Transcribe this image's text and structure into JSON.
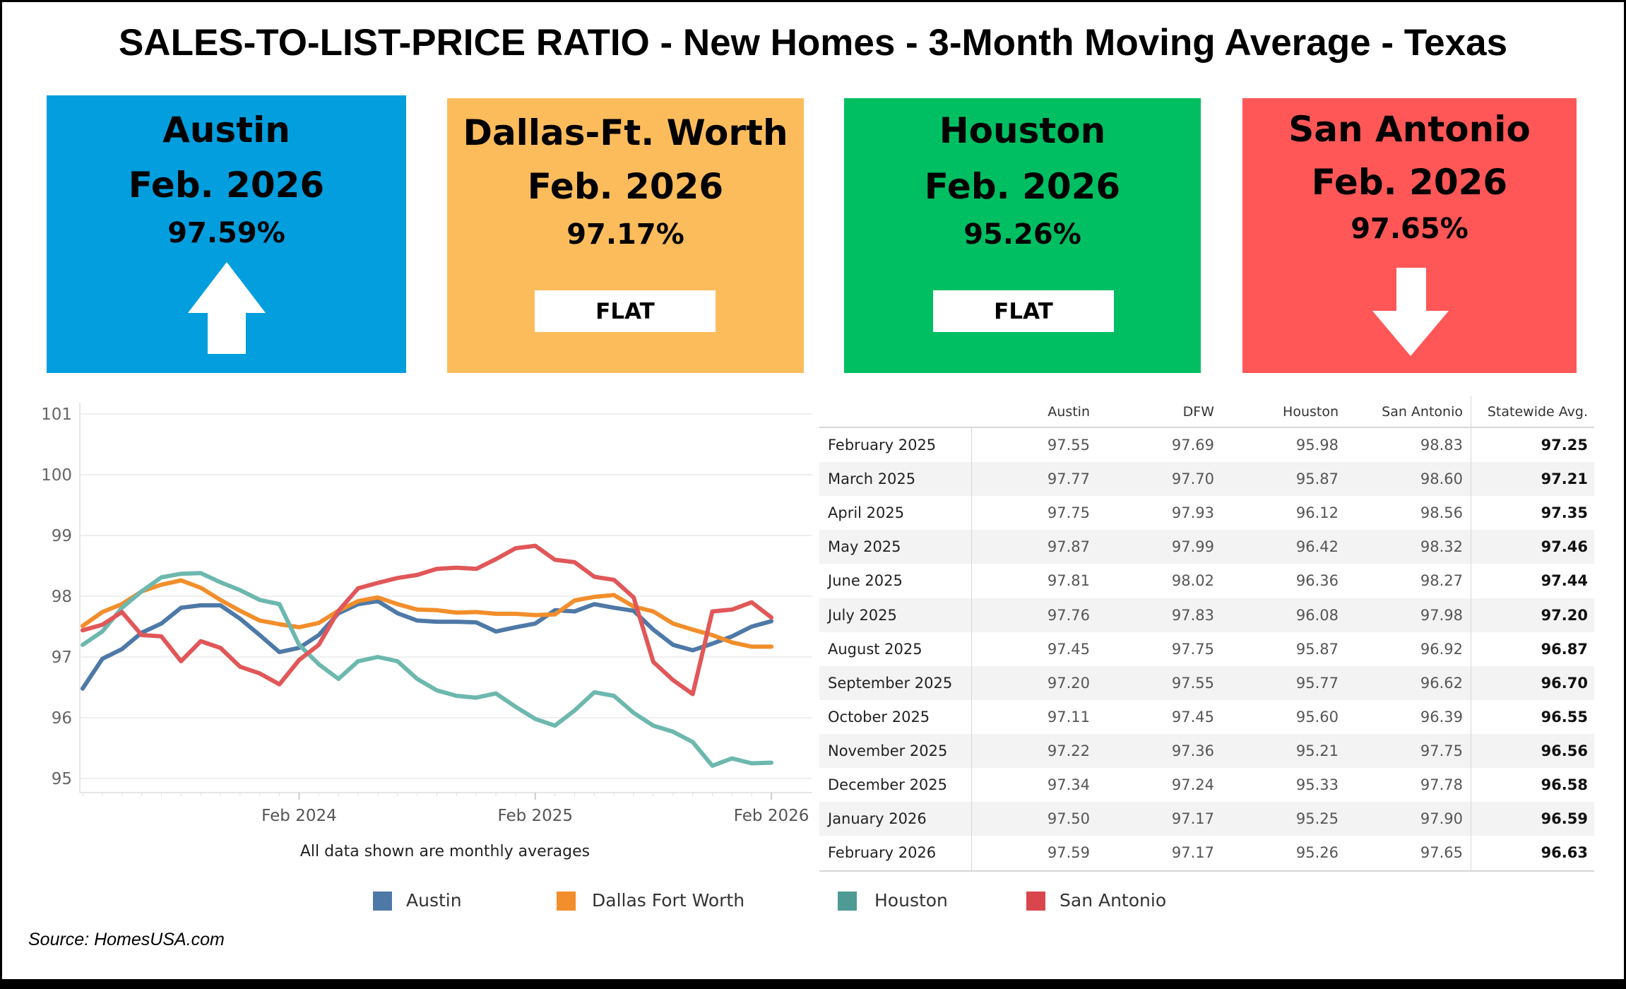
{
  "title": "SALES-TO-LIST-PRICE RATIO - New Homes - 3-Month Moving Average - Texas",
  "cards": [
    {
      "city": "Austin",
      "date": "Feb. 2026",
      "pct": "97.59%",
      "trend": "up",
      "trend_icon": "arrow-up-icon",
      "color": "#029ede"
    },
    {
      "city": "Dallas-Ft. Worth",
      "date": "Feb. 2026",
      "pct": "97.17%",
      "trend": "flat",
      "flat_label": "FLAT",
      "color": "#fdbc5c"
    },
    {
      "city": "Houston",
      "date": "Feb. 2026",
      "pct": "95.26%",
      "trend": "flat",
      "flat_label": "FLAT",
      "color": "#00bf63"
    },
    {
      "city": "San Antonio",
      "date": "Feb. 2026",
      "pct": "97.65%",
      "trend": "down",
      "trend_icon": "arrow-down-icon",
      "color": "#ff5757"
    }
  ],
  "chart_data": {
    "type": "line",
    "title": "",
    "xlabel": "",
    "ylabel": "",
    "ylim": [
      95,
      101
    ],
    "yticks": [
      "101",
      "100",
      "99",
      "98",
      "97",
      "96",
      "95"
    ],
    "xticks": [
      {
        "label": "Feb 2024",
        "month": "Feb 2024"
      },
      {
        "label": "Feb 2025",
        "month": "Feb 2025"
      },
      {
        "label": "Feb 2026",
        "month": "Feb 2026"
      }
    ],
    "grid": true,
    "legend": "bottom",
    "caption": "All data shown are monthly averages",
    "x": [
      "Mar 2023",
      "Apr 2023",
      "May 2023",
      "Jun 2023",
      "Jul 2023",
      "Aug 2023",
      "Sep 2023",
      "Oct 2023",
      "Nov 2023",
      "Dec 2023",
      "Jan 2024",
      "Feb 2024",
      "Mar 2024",
      "Apr 2024",
      "May 2024",
      "Jun 2024",
      "Jul 2024",
      "Aug 2024",
      "Sep 2024",
      "Oct 2024",
      "Nov 2024",
      "Dec 2024",
      "Jan 2025",
      "Feb 2025",
      "Mar 2025",
      "Apr 2025",
      "May 2025",
      "Jun 2025",
      "Jul 2025",
      "Aug 2025",
      "Sep 2025",
      "Oct 2025",
      "Nov 2025",
      "Dec 2025",
      "Jan 2026",
      "Feb 2026"
    ],
    "series": [
      {
        "name": "Austin",
        "color": "#4e79a7",
        "values": [
          96.48,
          96.97,
          97.13,
          97.4,
          97.55,
          97.81,
          97.85,
          97.85,
          97.63,
          97.36,
          97.08,
          97.15,
          97.36,
          97.72,
          97.87,
          97.92,
          97.72,
          97.6,
          97.58,
          97.58,
          97.57,
          97.42,
          97.49,
          97.55,
          97.77,
          97.75,
          97.87,
          97.81,
          97.76,
          97.45,
          97.2,
          97.11,
          97.22,
          97.34,
          97.5,
          97.59
        ]
      },
      {
        "name": "Dallas Fort Worth",
        "color": "#f28e2b",
        "values": [
          97.51,
          97.74,
          97.87,
          98.08,
          98.19,
          98.26,
          98.14,
          97.94,
          97.76,
          97.6,
          97.54,
          97.49,
          97.56,
          97.76,
          97.92,
          97.98,
          97.87,
          97.78,
          97.77,
          97.73,
          97.74,
          97.71,
          97.71,
          97.69,
          97.7,
          97.93,
          97.99,
          98.02,
          97.83,
          97.75,
          97.55,
          97.45,
          97.36,
          97.24,
          97.17,
          97.17
        ]
      },
      {
        "name": "Houston",
        "color": "#6db8ae",
        "values": [
          97.2,
          97.42,
          97.81,
          98.08,
          98.31,
          98.37,
          98.38,
          98.23,
          98.1,
          97.94,
          97.87,
          97.2,
          96.88,
          96.64,
          96.93,
          97.0,
          96.93,
          96.64,
          96.45,
          96.36,
          96.33,
          96.4,
          96.18,
          95.98,
          95.87,
          96.12,
          96.42,
          96.36,
          96.08,
          95.87,
          95.77,
          95.6,
          95.21,
          95.33,
          95.25,
          95.26
        ]
      },
      {
        "name": "San Antonio",
        "color": "#e15759",
        "values": [
          97.44,
          97.53,
          97.74,
          97.36,
          97.34,
          96.93,
          97.26,
          97.15,
          96.84,
          96.73,
          96.55,
          96.95,
          97.2,
          97.76,
          98.13,
          98.22,
          98.3,
          98.35,
          98.45,
          98.47,
          98.45,
          98.61,
          98.79,
          98.83,
          98.6,
          98.56,
          98.32,
          98.27,
          97.98,
          96.92,
          96.62,
          96.39,
          97.75,
          97.78,
          97.9,
          97.65
        ]
      }
    ]
  },
  "table": {
    "columns": [
      "Austin",
      "DFW",
      "Houston",
      "San Antonio",
      "Statewide Avg."
    ],
    "rows": [
      [
        "February 2025",
        "97.55",
        "97.69",
        "95.98",
        "98.83",
        "97.25"
      ],
      [
        "March 2025",
        "97.77",
        "97.70",
        "95.87",
        "98.60",
        "97.21"
      ],
      [
        "April 2025",
        "97.75",
        "97.93",
        "96.12",
        "98.56",
        "97.35"
      ],
      [
        "May 2025",
        "97.87",
        "97.99",
        "96.42",
        "98.32",
        "97.46"
      ],
      [
        "June 2025",
        "97.81",
        "98.02",
        "96.36",
        "98.27",
        "97.44"
      ],
      [
        "July 2025",
        "97.76",
        "97.83",
        "96.08",
        "97.98",
        "97.20"
      ],
      [
        "August 2025",
        "97.45",
        "97.75",
        "95.87",
        "96.92",
        "96.87"
      ],
      [
        "September 2025",
        "97.20",
        "97.55",
        "95.77",
        "96.62",
        "96.70"
      ],
      [
        "October 2025",
        "97.11",
        "97.45",
        "95.60",
        "96.39",
        "96.55"
      ],
      [
        "November 2025",
        "97.22",
        "97.36",
        "95.21",
        "97.75",
        "96.56"
      ],
      [
        "December 2025",
        "97.34",
        "97.24",
        "95.33",
        "97.78",
        "96.58"
      ],
      [
        "January 2026",
        "97.50",
        "97.17",
        "95.25",
        "97.90",
        "96.59"
      ],
      [
        "February 2026",
        "97.59",
        "97.17",
        "95.26",
        "97.65",
        "96.63"
      ]
    ]
  },
  "source": "Source: HomesUSA.com"
}
